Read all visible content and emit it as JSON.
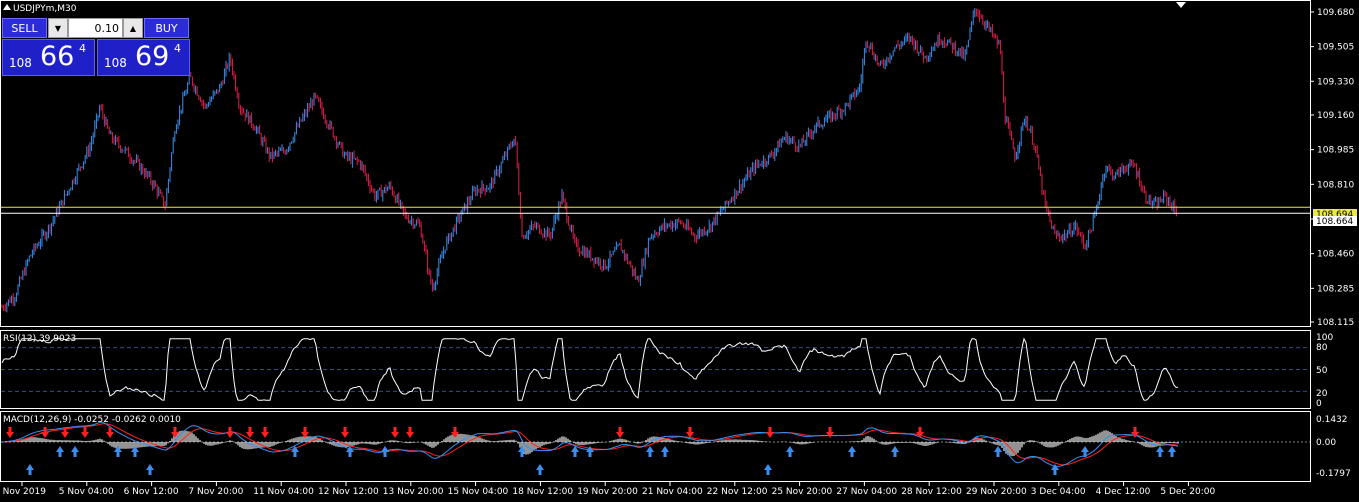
{
  "window": {
    "symbol_title": "USDJPYm,M30"
  },
  "trade_panel": {
    "sell_label": "SELL",
    "buy_label": "BUY",
    "lot_value": "0.10",
    "sell_price": {
      "prefix": "108",
      "big": "66",
      "sup": "4"
    },
    "buy_price": {
      "prefix": "108",
      "big": "69",
      "sup": "4"
    }
  },
  "price_axis": {
    "ticks": [
      "109.680",
      "109.505",
      "109.330",
      "109.160",
      "108.985",
      "108.810",
      "108.635",
      "108.460",
      "108.285",
      "108.115"
    ],
    "bid_label": "108.664",
    "ask_label": "108.694"
  },
  "rsi": {
    "title": "RSI(12) 39.9023",
    "levels": [
      "100",
      "80",
      "50",
      "20",
      "0"
    ]
  },
  "macd": {
    "title": "MACD(12,26,9) -0.0252 -0.0262 0.0010",
    "ticks": [
      "0.1432",
      "0.00",
      "-0.1797"
    ]
  },
  "time_axis": {
    "labels": [
      "4 Nov 2019",
      "5 Nov 04:00",
      "6 Nov 12:00",
      "7 Nov 20:00",
      "11 Nov 04:00",
      "12 Nov 12:00",
      "13 Nov 20:00",
      "15 Nov 04:00",
      "18 Nov 12:00",
      "19 Nov 20:00",
      "21 Nov 04:00",
      "22 Nov 12:00",
      "25 Nov 20:00",
      "27 Nov 04:00",
      "28 Nov 12:00",
      "29 Nov 20:00",
      "3 Dec 04:00",
      "4 Dec 12:00",
      "5 Dec 20:00"
    ]
  },
  "chart_data": {
    "type": "candlestick",
    "title": "USDJPYm,M30",
    "ylim": [
      108.115,
      109.7
    ],
    "bid": 108.664,
    "ask": 108.694,
    "series_path": [
      [
        0,
        108.18
      ],
      [
        15,
        108.25
      ],
      [
        30,
        108.45
      ],
      [
        50,
        108.6
      ],
      [
        60,
        108.7
      ],
      [
        75,
        108.85
      ],
      [
        90,
        109.0
      ],
      [
        100,
        109.2
      ],
      [
        110,
        109.05
      ],
      [
        125,
        108.98
      ],
      [
        140,
        108.9
      ],
      [
        155,
        108.8
      ],
      [
        165,
        108.7
      ],
      [
        175,
        109.1
      ],
      [
        190,
        109.35
      ],
      [
        205,
        109.2
      ],
      [
        220,
        109.3
      ],
      [
        230,
        109.45
      ],
      [
        240,
        109.2
      ],
      [
        255,
        109.1
      ],
      [
        270,
        108.95
      ],
      [
        285,
        108.98
      ],
      [
        300,
        109.12
      ],
      [
        315,
        109.25
      ],
      [
        330,
        109.1
      ],
      [
        345,
        108.95
      ],
      [
        360,
        108.92
      ],
      [
        375,
        108.75
      ],
      [
        390,
        108.8
      ],
      [
        405,
        108.65
      ],
      [
        420,
        108.6
      ],
      [
        432,
        108.28
      ],
      [
        445,
        108.5
      ],
      [
        460,
        108.65
      ],
      [
        475,
        108.78
      ],
      [
        490,
        108.8
      ],
      [
        505,
        108.95
      ],
      [
        515,
        109.05
      ],
      [
        522,
        108.55
      ],
      [
        535,
        108.6
      ],
      [
        550,
        108.55
      ],
      [
        562,
        108.75
      ],
      [
        575,
        108.5
      ],
      [
        590,
        108.45
      ],
      [
        605,
        108.4
      ],
      [
        620,
        108.5
      ],
      [
        638,
        108.32
      ],
      [
        650,
        108.55
      ],
      [
        665,
        108.6
      ],
      [
        680,
        108.62
      ],
      [
        695,
        108.55
      ],
      [
        710,
        108.6
      ],
      [
        725,
        108.7
      ],
      [
        740,
        108.8
      ],
      [
        755,
        108.9
      ],
      [
        770,
        108.95
      ],
      [
        785,
        109.05
      ],
      [
        800,
        109.0
      ],
      [
        815,
        109.1
      ],
      [
        830,
        109.15
      ],
      [
        845,
        109.2
      ],
      [
        860,
        109.3
      ],
      [
        866,
        109.55
      ],
      [
        880,
        109.4
      ],
      [
        895,
        109.5
      ],
      [
        910,
        109.55
      ],
      [
        925,
        109.45
      ],
      [
        940,
        109.55
      ],
      [
        955,
        109.5
      ],
      [
        965,
        109.45
      ],
      [
        975,
        109.7
      ],
      [
        988,
        109.6
      ],
      [
        1000,
        109.5
      ],
      [
        1005,
        109.15
      ],
      [
        1015,
        108.95
      ],
      [
        1025,
        109.15
      ],
      [
        1035,
        109.0
      ],
      [
        1045,
        108.7
      ],
      [
        1055,
        108.55
      ],
      [
        1065,
        108.55
      ],
      [
        1075,
        108.6
      ],
      [
        1085,
        108.5
      ],
      [
        1095,
        108.65
      ],
      [
        1105,
        108.9
      ],
      [
        1115,
        108.85
      ],
      [
        1125,
        108.9
      ],
      [
        1135,
        108.9
      ],
      [
        1145,
        108.75
      ],
      [
        1155,
        108.7
      ],
      [
        1165,
        108.75
      ],
      [
        1178,
        108.66
      ]
    ]
  },
  "colors": {
    "bull": "#3a8ff0",
    "bear": "#e0204a",
    "grid_dash": "#3a4a8a",
    "bid_line": "#ffffff",
    "ask_line": "#e8e84a",
    "macd_hist": "#b8b8b8",
    "macd_signal": "#ff2020",
    "macd_line": "#3a8ff0",
    "arrow_up": "#3a8ff0",
    "arrow_down": "#ff2020"
  }
}
